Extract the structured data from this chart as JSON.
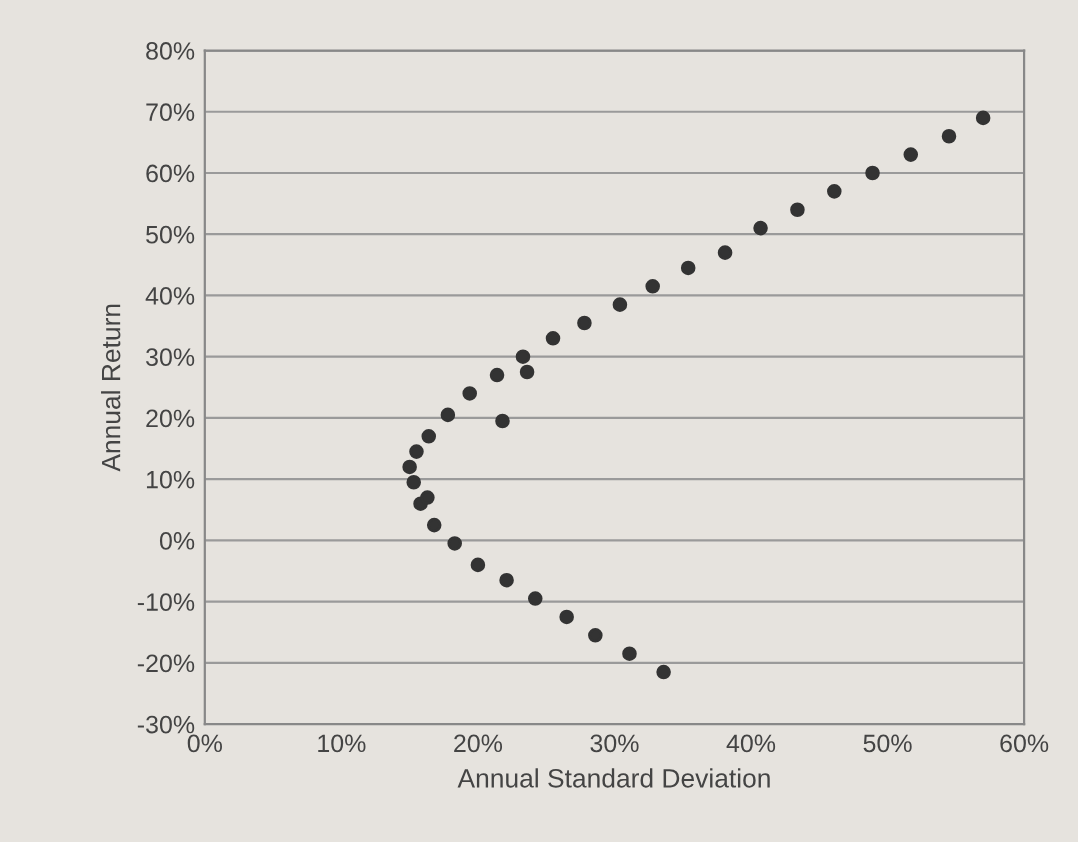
{
  "chart_data": {
    "type": "scatter",
    "xlabel": "Annual Standard Deviation",
    "ylabel": "Annual Return",
    "xlim": [
      0,
      60
    ],
    "xticks": [
      {
        "value": 0,
        "label": "0%"
      },
      {
        "value": 10,
        "label": "10%"
      },
      {
        "value": 20,
        "label": "20%"
      },
      {
        "value": 30,
        "label": "30%"
      },
      {
        "value": 40,
        "label": "40%"
      },
      {
        "value": 50,
        "label": "50%"
      },
      {
        "value": 60,
        "label": "60%"
      }
    ],
    "ylim": [
      -30,
      80
    ],
    "yticks": [
      {
        "value": -30,
        "label": "-30%"
      },
      {
        "value": -20,
        "label": "-20%"
      },
      {
        "value": -10,
        "label": "-10%"
      },
      {
        "value": 0,
        "label": "0%"
      },
      {
        "value": 10,
        "label": "10%"
      },
      {
        "value": 20,
        "label": "20%"
      },
      {
        "value": 30,
        "label": "30%"
      },
      {
        "value": 40,
        "label": "40%"
      },
      {
        "value": 50,
        "label": "50%"
      },
      {
        "value": 60,
        "label": "60%"
      },
      {
        "value": 70,
        "label": "70%"
      },
      {
        "value": 80,
        "label": "80%"
      }
    ],
    "grid": "y",
    "marker": "circle",
    "legend": false,
    "series": [
      {
        "color": "#333333",
        "x": [
          57,
          54.5,
          51.7,
          48.9,
          46.1,
          43.4,
          40.7,
          38.1,
          35.4,
          32.8,
          30.4,
          27.8,
          25.5,
          23.3,
          21.4,
          19.4,
          17.8,
          16.4,
          15.5,
          15,
          15.3,
          15.8,
          16.8,
          18.3,
          20,
          22.1,
          24.2,
          26.5,
          28.6,
          31.1,
          33.6
        ],
        "values": [
          69,
          66,
          63,
          60,
          57,
          54,
          51,
          47,
          44.5,
          41.5,
          38.5,
          35.5,
          33,
          30,
          27,
          24,
          20.5,
          17,
          14.5,
          12,
          9.5,
          6,
          2.5,
          -0.5,
          -4,
          -6.5,
          -9.5,
          -12.5,
          -15.5,
          -18.5,
          -21.5
        ]
      },
      {
        "color": "#333333",
        "x": [
          23.6,
          21.8,
          16.3
        ],
        "values": [
          27.5,
          19.5,
          7
        ]
      }
    ]
  }
}
